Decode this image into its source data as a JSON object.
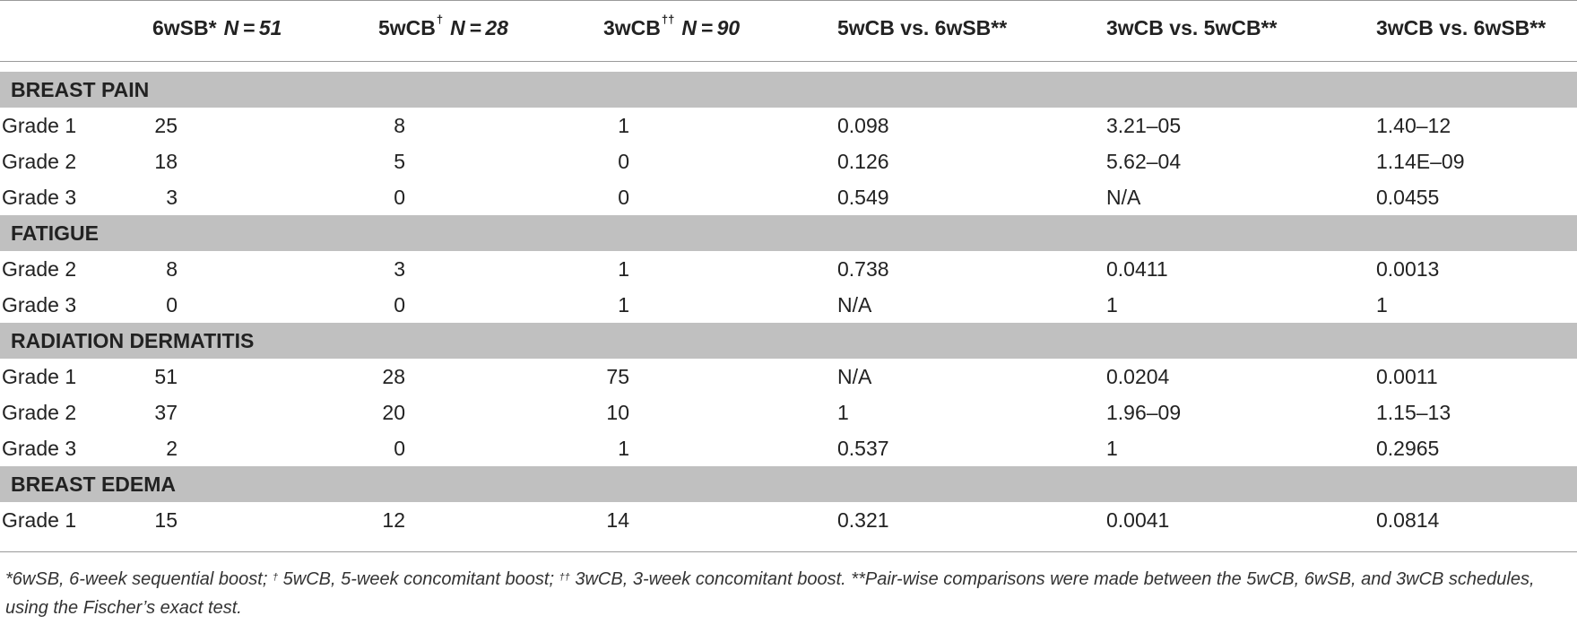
{
  "headers": {
    "col1": {
      "name": "6wSB*",
      "sup": "",
      "n": "N = 51"
    },
    "col2": {
      "name": "5wCB",
      "sup": "†",
      "n": "N = 28"
    },
    "col3": {
      "name": "3wCB",
      "sup": "††",
      "n": "N = 90"
    },
    "col4": "5wCB vs. 6wSB**",
    "col5": "3wCB vs. 5wCB**",
    "col6": "3wCB vs. 6wSB**"
  },
  "sections": [
    {
      "title": "BREAST PAIN",
      "rows": [
        {
          "label": "Grade 1",
          "c1": "25",
          "c2": "8",
          "c3": "1",
          "c4": "0.098",
          "c5": "3.21–05",
          "c6": "1.40–12"
        },
        {
          "label": "Grade 2",
          "c1": "18",
          "c2": "5",
          "c3": "0",
          "c4": "0.126",
          "c5": "5.62–04",
          "c6": "1.14E–09"
        },
        {
          "label": "Grade 3",
          "c1": "3",
          "c2": "0",
          "c3": "0",
          "c4": "0.549",
          "c5": "N/A",
          "c6": "0.0455"
        }
      ]
    },
    {
      "title": "FATIGUE",
      "rows": [
        {
          "label": "Grade 2",
          "c1": "8",
          "c2": "3",
          "c3": "1",
          "c4": "0.738",
          "c5": "0.0411",
          "c6": "0.0013"
        },
        {
          "label": "Grade 3",
          "c1": "0",
          "c2": "0",
          "c3": "1",
          "c4": "N/A",
          "c5": "1",
          "c6": "1"
        }
      ]
    },
    {
      "title": "RADIATION DERMATITIS",
      "rows": [
        {
          "label": "Grade 1",
          "c1": "51",
          "c2": "28",
          "c3": "75",
          "c4": "N/A",
          "c5": "0.0204",
          "c6": "0.0011"
        },
        {
          "label": "Grade 2",
          "c1": "37",
          "c2": "20",
          "c3": "10",
          "c4": "1",
          "c5": "1.96–09",
          "c6": "1.15–13"
        },
        {
          "label": "Grade 3",
          "c1": "2",
          "c2": "0",
          "c3": "1",
          "c4": "0.537",
          "c5": "1",
          "c6": "0.2965"
        }
      ]
    },
    {
      "title": "BREAST EDEMA",
      "rows": [
        {
          "label": "Grade 1",
          "c1": "15",
          "c2": "12",
          "c3": "14",
          "c4": "0.321",
          "c5": "0.0041",
          "c6": "0.0814"
        }
      ]
    }
  ],
  "footnote": {
    "part1": "*6wSB, 6-week sequential boost; ",
    "sup1": "†",
    "part2": " 5wCB, 5-week concomitant boost; ",
    "sup2": "††",
    "part3": " 3wCB, 3-week concomitant boost. **Pair-wise comparisons were made between the 5wCB, 6wSB, and 3wCB schedules, using the Fischer’s exact test."
  }
}
